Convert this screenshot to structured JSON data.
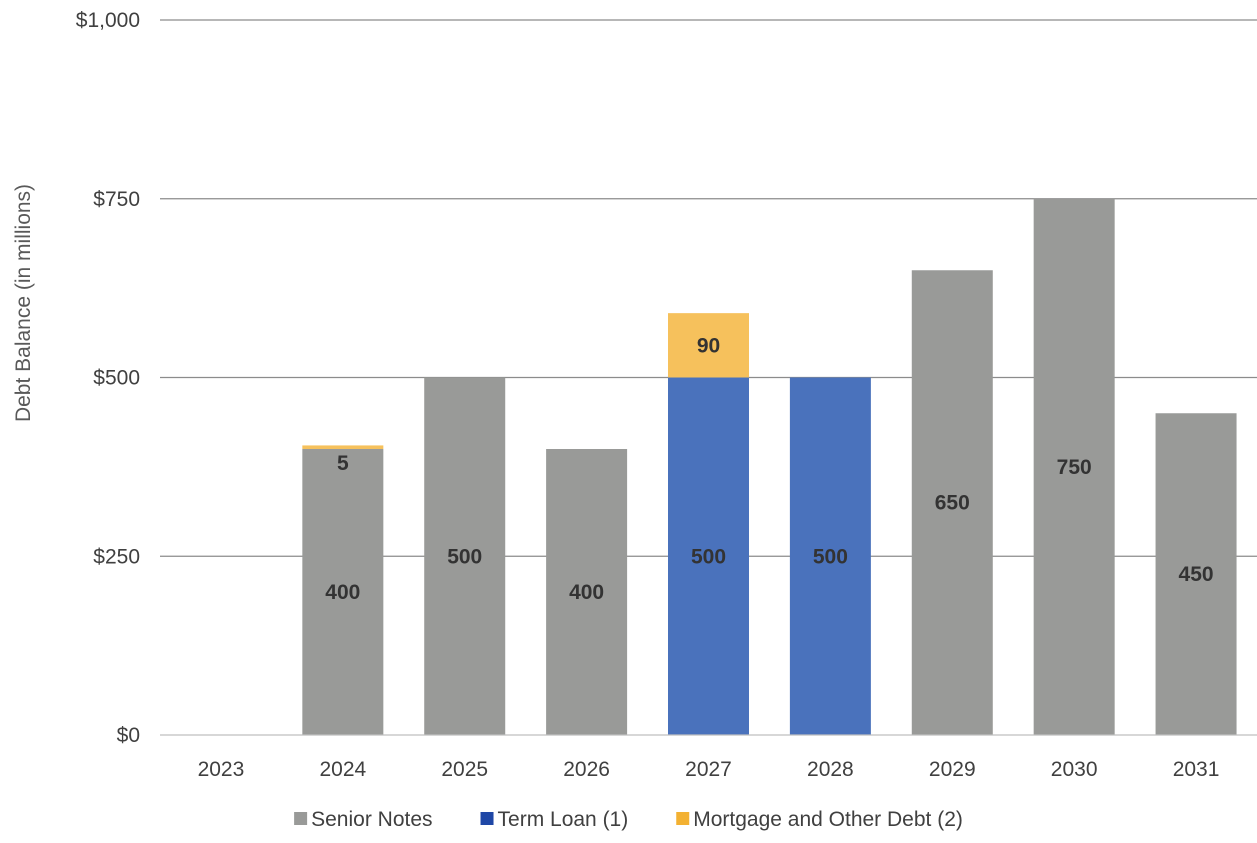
{
  "chart_data": {
    "type": "bar",
    "stacked": true,
    "title": "",
    "xlabel": "",
    "ylabel": "Debt Balance (in millions)",
    "ylim": [
      0,
      1000
    ],
    "yticks": [
      0,
      250,
      500,
      750,
      1000
    ],
    "ytick_labels": [
      "$0",
      "$250",
      "$500",
      "$750",
      "$1,000"
    ],
    "grid": true,
    "legend_position": "bottom",
    "categories": [
      "2023",
      "2024",
      "2025",
      "2026",
      "2027",
      "2028",
      "2029",
      "2030",
      "2031"
    ],
    "series": [
      {
        "name": "Senior Notes",
        "color": "#999a98",
        "values": [
          0,
          400,
          500,
          400,
          0,
          0,
          650,
          750,
          450
        ],
        "labels": [
          "",
          "400",
          "500",
          "400",
          "",
          "",
          "650",
          "750",
          "450"
        ]
      },
      {
        "name": "Term Loan (1)",
        "color": "#4a72bc",
        "legend_color": "#1f47a6",
        "values": [
          0,
          0,
          0,
          0,
          500,
          500,
          0,
          0,
          0
        ],
        "labels": [
          "",
          "",
          "",
          "",
          "500",
          "500",
          "",
          "",
          ""
        ]
      },
      {
        "name": "Mortgage and Other Debt (2)",
        "color": "#f6c15c",
        "legend_color": "#f3b132",
        "values": [
          0,
          5,
          0,
          0,
          90,
          0,
          0,
          0,
          0
        ],
        "labels": [
          "",
          "5",
          "",
          "",
          "90",
          "",
          "",
          "",
          ""
        ]
      }
    ]
  }
}
